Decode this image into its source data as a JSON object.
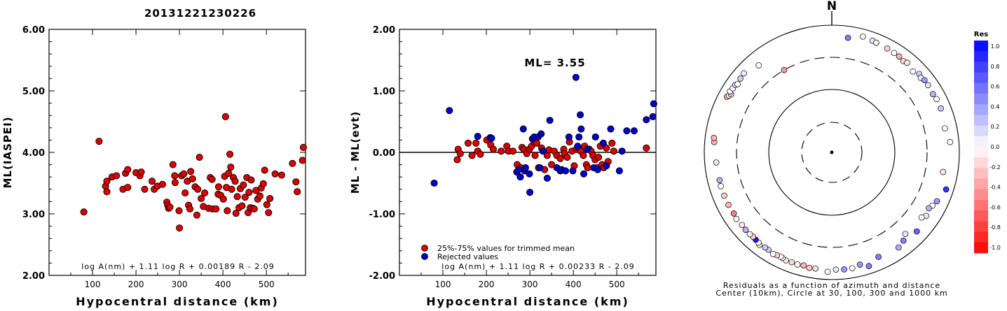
{
  "figure_title": "20131221230226",
  "chart_data": [
    {
      "type": "scatter",
      "panel": "left",
      "xlabel": "Hypocentral distance (km)",
      "ylabel": "ML(IASPEI)",
      "xlim": [
        0,
        590
      ],
      "ylim": [
        2.0,
        6.0
      ],
      "xticks": [
        "100",
        "200",
        "300",
        "400",
        "500"
      ],
      "yticks": [
        "2.00",
        "3.00",
        "4.00",
        "5.00",
        "6.00"
      ],
      "grid": false,
      "formula": "log A(nm) + 1.11 log R + 0.00189 R - 2.09",
      "point_color": "#dd0000",
      "points": [
        [
          80,
          3.03
        ],
        [
          115,
          4.18
        ],
        [
          130,
          3.45
        ],
        [
          133,
          3.53
        ],
        [
          133,
          3.36
        ],
        [
          145,
          3.6
        ],
        [
          155,
          3.62
        ],
        [
          170,
          3.4
        ],
        [
          176,
          3.66
        ],
        [
          181,
          3.72
        ],
        [
          181,
          3.43
        ],
        [
          200,
          3.67
        ],
        [
          209,
          3.62
        ],
        [
          212,
          3.68
        ],
        [
          220,
          3.4
        ],
        [
          237,
          3.53
        ],
        [
          242,
          3.4
        ],
        [
          249,
          3.45
        ],
        [
          261,
          3.48
        ],
        [
          271,
          3.19
        ],
        [
          273,
          3.14
        ],
        [
          275,
          3.09
        ],
        [
          278,
          3.11
        ],
        [
          285,
          3.8
        ],
        [
          289,
          3.62
        ],
        [
          290,
          3.51
        ],
        [
          299,
          3.05
        ],
        [
          300,
          2.77
        ],
        [
          305,
          3.62
        ],
        [
          310,
          3.65
        ],
        [
          313,
          3.34
        ],
        [
          318,
          3.53
        ],
        [
          321,
          3.14
        ],
        [
          324,
          3.08
        ],
        [
          326,
          3.69
        ],
        [
          330,
          3.57
        ],
        [
          336,
          3.44
        ],
        [
          340,
          2.98
        ],
        [
          342,
          3.4
        ],
        [
          346,
          3.92
        ],
        [
          350,
          3.25
        ],
        [
          355,
          3.12
        ],
        [
          358,
          3.34
        ],
        [
          367,
          3.09
        ],
        [
          371,
          3.59
        ],
        [
          375,
          3.56
        ],
        [
          376,
          3.08
        ],
        [
          384,
          3.08
        ],
        [
          389,
          3.32
        ],
        [
          390,
          3.44
        ],
        [
          395,
          3.3
        ],
        [
          401,
          3.24
        ],
        [
          404,
          3.61
        ],
        [
          406,
          4.58
        ],
        [
          408,
          3.43
        ],
        [
          410,
          3.05
        ],
        [
          413,
          3.66
        ],
        [
          416,
          3.97
        ],
        [
          418,
          3.76
        ],
        [
          420,
          3.4
        ],
        [
          424,
          3.59
        ],
        [
          428,
          3.53
        ],
        [
          430,
          3.01
        ],
        [
          433,
          3.28
        ],
        [
          437,
          3.1
        ],
        [
          440,
          3.41
        ],
        [
          444,
          3.13
        ],
        [
          447,
          3.47
        ],
        [
          451,
          3.27
        ],
        [
          455,
          3.59
        ],
        [
          458,
          3.02
        ],
        [
          460,
          3.35
        ],
        [
          463,
          3.1
        ],
        [
          465,
          3.55
        ],
        [
          469,
          3.09
        ],
        [
          472,
          3.08
        ],
        [
          476,
          3.38
        ],
        [
          480,
          3.24
        ],
        [
          485,
          3.29
        ],
        [
          488,
          3.42
        ],
        [
          493,
          3.49
        ],
        [
          496,
          3.71
        ],
        [
          501,
          3.15
        ],
        [
          505,
          3.02
        ],
        [
          508,
          3.25
        ],
        [
          520,
          3.65
        ],
        [
          535,
          3.63
        ],
        [
          560,
          3.82
        ],
        [
          568,
          3.52
        ],
        [
          571,
          3.36
        ],
        [
          583,
          3.87
        ],
        [
          585,
          4.08
        ]
      ]
    },
    {
      "type": "scatter",
      "panel": "middle",
      "xlabel": "Hypocentral distance (km)",
      "ylabel": "ML - ML(evt)",
      "xlim": [
        0,
        590
      ],
      "ylim": [
        -2.0,
        2.0
      ],
      "xticks": [
        "100",
        "200",
        "300",
        "400",
        "500"
      ],
      "yticks": [
        "-2.00",
        "-1.00",
        "0.00",
        "1.00",
        "2.00"
      ],
      "grid": false,
      "zero_line": true,
      "annotation": "ML= 3.55",
      "formula": "log A(nm) + 1.11 log R + 0.00233 R - 2.09",
      "legend": {
        "placement": "bottom-left",
        "entries": [
          {
            "label": "25%-75% values for trimmed mean",
            "color": "#dd0000"
          },
          {
            "label": "Rejected values",
            "color": "#0000cc"
          }
        ]
      },
      "series": [
        {
          "name": "25%-75% values for trimmed mean",
          "color": "#dd0000",
          "points": [
            [
              133,
              -0.12
            ],
            [
              135,
              0.05
            ],
            [
              140,
              -0.02
            ],
            [
              158,
              0.15
            ],
            [
              167,
              -0.05
            ],
            [
              176,
              0.15
            ],
            [
              180,
              0.02
            ],
            [
              186,
              -0.03
            ],
            [
              201,
              0.2
            ],
            [
              210,
              0.12
            ],
            [
              216,
              0.05
            ],
            [
              234,
              0.02
            ],
            [
              247,
              0.1
            ],
            [
              251,
              0.02
            ],
            [
              261,
              0.02
            ],
            [
              271,
              -0.2
            ],
            [
              279,
              -0.25
            ],
            [
              282,
              0.08
            ],
            [
              286,
              0.05
            ],
            [
              293,
              -0.02
            ],
            [
              299,
              0.05
            ],
            [
              304,
              0.1
            ],
            [
              310,
              0.17
            ],
            [
              312,
              -0.05
            ],
            [
              316,
              0.15
            ],
            [
              320,
              -0.25
            ],
            [
              327,
              0.07
            ],
            [
              334,
              -0.28
            ],
            [
              340,
              -0.05
            ],
            [
              344,
              0.04
            ],
            [
              350,
              -0.2
            ],
            [
              356,
              0.02
            ],
            [
              362,
              -0.05
            ],
            [
              370,
              -0.1
            ],
            [
              378,
              0.05
            ],
            [
              380,
              -0.02
            ],
            [
              386,
              -0.08
            ],
            [
              391,
              0.17
            ],
            [
              397,
              0.02
            ],
            [
              402,
              -0.22
            ],
            [
              407,
              0.05
            ],
            [
              412,
              0.07
            ],
            [
              417,
              0.02
            ],
            [
              423,
              -0.05
            ],
            [
              426,
              0.1
            ],
            [
              430,
              -0.2
            ],
            [
              433,
              -0.25
            ],
            [
              437,
              0.05
            ],
            [
              441,
              0.02
            ],
            [
              445,
              -0.05
            ],
            [
              450,
              -0.12
            ],
            [
              455,
              -0.25
            ],
            [
              458,
              -0.08
            ],
            [
              462,
              0.1
            ],
            [
              466,
              -0.2
            ],
            [
              470,
              -0.25
            ],
            [
              476,
              0.07
            ],
            [
              480,
              -0.15
            ],
            [
              489,
              0.15
            ],
            [
              493,
              0.02
            ],
            [
              568,
              0.07
            ]
          ]
        },
        {
          "name": "Rejected values",
          "color": "#0000cc",
          "points": [
            [
              80,
              -0.5
            ],
            [
              115,
              0.68
            ],
            [
              180,
              0.26
            ],
            [
              209,
              0.24
            ],
            [
              212,
              0.23
            ],
            [
              270,
              -0.32
            ],
            [
              274,
              -0.28
            ],
            [
              278,
              -0.4
            ],
            [
              285,
              0.38
            ],
            [
              288,
              -0.3
            ],
            [
              290,
              -0.25
            ],
            [
              299,
              -0.35
            ],
            [
              300,
              -0.65
            ],
            [
              306,
              0.22
            ],
            [
              310,
              0.25
            ],
            [
              319,
              0.25
            ],
            [
              323,
              -0.25
            ],
            [
              326,
              0.3
            ],
            [
              330,
              0.02
            ],
            [
              340,
              -0.42
            ],
            [
              346,
              0.52
            ],
            [
              362,
              -0.25
            ],
            [
              370,
              -0.3
            ],
            [
              373,
              -0.28
            ],
            [
              382,
              -0.3
            ],
            [
              390,
              0.25
            ],
            [
              399,
              -0.3
            ],
            [
              406,
              1.22
            ],
            [
              410,
              0.1
            ],
            [
              413,
              0.25
            ],
            [
              416,
              0.61
            ],
            [
              418,
              0.38
            ],
            [
              424,
              -0.35
            ],
            [
              432,
              0.05
            ],
            [
              447,
              -0.25
            ],
            [
              451,
              0.25
            ],
            [
              456,
              -0.28
            ],
            [
              469,
              0.15
            ],
            [
              476,
              -0.22
            ],
            [
              486,
              0.38
            ],
            [
              506,
              -0.3
            ],
            [
              512,
              0.02
            ],
            [
              523,
              0.35
            ],
            [
              540,
              0.35
            ],
            [
              568,
              0.53
            ],
            [
              583,
              0.58
            ],
            [
              585,
              0.79
            ]
          ]
        }
      ]
    },
    {
      "type": "scatter",
      "panel": "polar",
      "title": "N",
      "caption_line1": "Residuals as a function of azimuth and distance",
      "caption_line2": "Center (10km), Circle at 30, 100, 300 and 1000 km",
      "colorbar": {
        "label": "Res",
        "ticks": [
          "1.0",
          "0.8",
          "0.6",
          "0.4",
          "0.2",
          "0.0",
          "-0.2",
          "-0.4",
          "-0.6",
          "-0.8",
          "-1.0"
        ],
        "range": [
          -1.0,
          1.0
        ],
        "positive_color": "#0000ff",
        "negative_color": "#ff0000"
      },
      "rings_km": [
        30,
        100,
        300,
        1000
      ],
      "points": [
        [
          8,
          650,
          0.5
        ],
        [
          15,
          760,
          -0.05
        ],
        [
          20,
          730,
          0.1
        ],
        [
          22,
          715,
          0.05
        ],
        [
          28,
          700,
          -0.2
        ],
        [
          32,
          690,
          0.0
        ],
        [
          35,
          685,
          -0.3
        ],
        [
          38,
          655,
          -0.15
        ],
        [
          40,
          680,
          -0.1
        ],
        [
          45,
          620,
          0.0
        ],
        [
          48,
          690,
          0.2
        ],
        [
          50,
          655,
          0.05
        ],
        [
          52,
          690,
          0.4
        ],
        [
          55,
          685,
          0.1
        ],
        [
          60,
          670,
          0.3
        ],
        [
          63,
          690,
          0.0
        ],
        [
          68,
          690,
          0.2
        ],
        [
          78,
          640,
          0.0
        ],
        [
          85,
          720,
          0.0
        ],
        [
          100,
          580,
          -0.1
        ],
        [
          108,
          760,
          0.8
        ],
        [
          115,
          650,
          0.4
        ],
        [
          118,
          600,
          0.0
        ],
        [
          120,
          560,
          0.3
        ],
        [
          124,
          600,
          0.1
        ],
        [
          126,
          540,
          0.0
        ],
        [
          133,
          655,
          0.6
        ],
        [
          138,
          520,
          0.1
        ],
        [
          141,
          600,
          0.5
        ],
        [
          145,
          660,
          0.3
        ],
        [
          156,
          620,
          0.5
        ],
        [
          162,
          750,
          0.5
        ],
        [
          166,
          650,
          0.4
        ],
        [
          170,
          700,
          0.0
        ],
        [
          174,
          700,
          0.4
        ],
        [
          178,
          690,
          0.1
        ],
        [
          182,
          750,
          0.0
        ],
        [
          188,
          690,
          -0.1
        ],
        [
          191,
          700,
          -0.2
        ],
        [
          194,
          670,
          -0.3
        ],
        [
          197,
          690,
          0.0
        ],
        [
          200,
          680,
          -0.15
        ],
        [
          203,
          690,
          -0.1
        ],
        [
          205,
          670,
          0.0
        ],
        [
          206,
          660,
          0.0
        ],
        [
          208,
          670,
          -0.2
        ],
        [
          210,
          690,
          0.0
        ],
        [
          213,
          660,
          0.2
        ],
        [
          215,
          660,
          0.2
        ],
        [
          218,
          690,
          0.0
        ],
        [
          219,
          660,
          0.0
        ],
        [
          221,
          650,
          0.9
        ],
        [
          223,
          640,
          -0.2
        ],
        [
          225,
          650,
          0.05
        ],
        [
          228,
          650,
          0.3
        ],
        [
          231,
          640,
          -0.1
        ],
        [
          235,
          660,
          0.0
        ],
        [
          238,
          640,
          -0.5
        ],
        [
          243,
          650,
          -0.3
        ],
        [
          248,
          650,
          -0.2
        ],
        [
          253,
          650,
          0.0
        ],
        [
          256,
          640,
          0.3
        ],
        [
          265,
          650,
          0.1
        ],
        [
          275,
          700,
          -0.3
        ],
        [
          277,
          720,
          -0.3
        ],
        [
          298,
          720,
          -0.3
        ],
        [
          299,
          690,
          0.0
        ],
        [
          300,
          660,
          -0.3
        ],
        [
          301,
          720,
          0.0
        ],
        [
          303,
          700,
          0.0
        ],
        [
          305,
          700,
          0.2
        ],
        [
          306,
          660,
          0.0
        ],
        [
          309,
          690,
          0.2
        ],
        [
          312,
          710,
          0.05
        ],
        [
          320,
          600,
          0.0
        ],
        [
          330,
          300,
          -0.4
        ]
      ]
    }
  ]
}
